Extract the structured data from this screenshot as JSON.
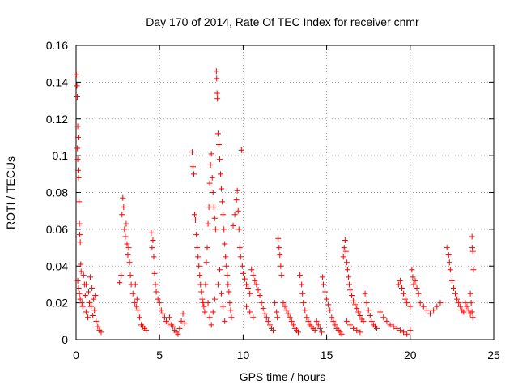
{
  "chart_data": {
    "type": "scatter",
    "title": "Day 170 of 2014, Rate Of TEC Index for receiver cnmr",
    "xlabel": "GPS time / hours",
    "ylabel": "ROTI / TECUs",
    "xlim": [
      0,
      25
    ],
    "ylim": [
      0,
      0.16
    ],
    "xticks": [
      0,
      5,
      10,
      15,
      20,
      25
    ],
    "xtick_labels": [
      "0",
      "5",
      "10",
      "15",
      "20",
      "25"
    ],
    "yticks": [
      0,
      0.02,
      0.04,
      0.06,
      0.08,
      0.1,
      0.12,
      0.14,
      0.16
    ],
    "ytick_labels": [
      "0",
      "0.02",
      "0.04",
      "0.06",
      "0.08",
      "0.1",
      "0.12",
      "0.14",
      "0.16"
    ],
    "grid": true,
    "marker": "+",
    "series": [
      {
        "name": "ROTI",
        "color": "#ff0000",
        "points": [
          [
            0.02,
            0.144
          ],
          [
            0.05,
            0.138
          ],
          [
            0.07,
            0.132
          ],
          [
            0.1,
            0.116
          ],
          [
            0.12,
            0.11
          ],
          [
            0.08,
            0.104
          ],
          [
            0.1,
            0.098
          ],
          [
            0.12,
            0.092
          ],
          [
            0.15,
            0.088
          ],
          [
            0.18,
            0.075
          ],
          [
            0.2,
            0.063
          ],
          [
            0.22,
            0.057
          ],
          [
            0.25,
            0.053
          ],
          [
            0.28,
            0.041
          ],
          [
            0.3,
            0.037
          ],
          [
            0.1,
            0.032
          ],
          [
            0.15,
            0.028
          ],
          [
            0.2,
            0.025
          ],
          [
            0.25,
            0.022
          ],
          [
            0.35,
            0.02
          ],
          [
            0.4,
            0.018
          ],
          [
            0.5,
            0.03
          ],
          [
            0.55,
            0.024
          ],
          [
            0.6,
            0.015
          ],
          [
            0.7,
            0.012
          ],
          [
            0.75,
            0.026
          ],
          [
            0.8,
            0.02
          ],
          [
            0.9,
            0.018
          ],
          [
            1.0,
            0.013
          ],
          [
            1.05,
            0.022
          ],
          [
            1.1,
            0.016
          ],
          [
            1.2,
            0.01
          ],
          [
            1.3,
            0.007
          ],
          [
            1.4,
            0.005
          ],
          [
            1.5,
            0.004
          ],
          [
            0.45,
            0.035
          ],
          [
            0.6,
            0.03
          ],
          [
            0.85,
            0.034
          ],
          [
            0.95,
            0.028
          ],
          [
            1.15,
            0.024
          ],
          [
            2.6,
            0.031
          ],
          [
            2.7,
            0.035
          ],
          [
            2.75,
            0.068
          ],
          [
            2.8,
            0.077
          ],
          [
            2.85,
            0.072
          ],
          [
            2.9,
            0.06
          ],
          [
            2.95,
            0.056
          ],
          [
            3.0,
            0.063
          ],
          [
            3.05,
            0.052
          ],
          [
            3.1,
            0.046
          ],
          [
            3.15,
            0.05
          ],
          [
            3.2,
            0.042
          ],
          [
            3.25,
            0.035
          ],
          [
            3.3,
            0.03
          ],
          [
            3.4,
            0.025
          ],
          [
            3.5,
            0.02
          ],
          [
            3.6,
            0.018
          ],
          [
            3.7,
            0.016
          ],
          [
            3.8,
            0.012
          ],
          [
            3.9,
            0.008
          ],
          [
            4.0,
            0.007
          ],
          [
            4.1,
            0.006
          ],
          [
            4.2,
            0.005
          ],
          [
            3.55,
            0.03
          ],
          [
            3.65,
            0.022
          ],
          [
            4.5,
            0.058
          ],
          [
            4.55,
            0.05
          ],
          [
            4.6,
            0.054
          ],
          [
            4.65,
            0.045
          ],
          [
            4.7,
            0.036
          ],
          [
            4.75,
            0.03
          ],
          [
            4.8,
            0.026
          ],
          [
            4.9,
            0.022
          ],
          [
            5.0,
            0.02
          ],
          [
            5.1,
            0.016
          ],
          [
            5.2,
            0.014
          ],
          [
            5.3,
            0.012
          ],
          [
            5.4,
            0.01
          ],
          [
            5.5,
            0.009
          ],
          [
            5.6,
            0.012
          ],
          [
            5.7,
            0.008
          ],
          [
            5.8,
            0.007
          ],
          [
            5.9,
            0.005
          ],
          [
            6.0,
            0.004
          ],
          [
            6.1,
            0.003
          ],
          [
            6.2,
            0.006
          ],
          [
            6.3,
            0.01
          ],
          [
            6.4,
            0.014
          ],
          [
            6.5,
            0.009
          ],
          [
            6.95,
            0.102
          ],
          [
            7.0,
            0.094
          ],
          [
            7.05,
            0.09
          ],
          [
            7.1,
            0.068
          ],
          [
            7.15,
            0.065
          ],
          [
            7.2,
            0.057
          ],
          [
            7.25,
            0.05
          ],
          [
            7.3,
            0.045
          ],
          [
            7.35,
            0.04
          ],
          [
            7.4,
            0.035
          ],
          [
            7.45,
            0.03
          ],
          [
            7.5,
            0.026
          ],
          [
            7.55,
            0.022
          ],
          [
            7.6,
            0.02
          ],
          [
            7.65,
            0.018
          ],
          [
            7.7,
            0.015
          ],
          [
            7.75,
            0.03
          ],
          [
            7.8,
            0.042
          ],
          [
            7.85,
            0.05
          ],
          [
            7.9,
            0.063
          ],
          [
            7.95,
            0.072
          ],
          [
            8.0,
            0.085
          ],
          [
            8.05,
            0.095
          ],
          [
            8.1,
            0.101
          ],
          [
            8.15,
            0.088
          ],
          [
            8.2,
            0.08
          ],
          [
            8.25,
            0.072
          ],
          [
            8.3,
            0.066
          ],
          [
            8.35,
            0.06
          ],
          [
            8.4,
            0.146
          ],
          [
            8.42,
            0.142
          ],
          [
            8.44,
            0.134
          ],
          [
            8.46,
            0.131
          ],
          [
            8.5,
            0.112
          ],
          [
            8.55,
            0.106
          ],
          [
            8.6,
            0.098
          ],
          [
            8.65,
            0.09
          ],
          [
            8.7,
            0.082
          ],
          [
            8.75,
            0.075
          ],
          [
            8.8,
            0.068
          ],
          [
            8.85,
            0.06
          ],
          [
            8.9,
            0.052
          ],
          [
            8.95,
            0.045
          ],
          [
            9.0,
            0.04
          ],
          [
            9.05,
            0.035
          ],
          [
            9.1,
            0.03
          ],
          [
            9.15,
            0.026
          ],
          [
            9.2,
            0.02
          ],
          [
            9.25,
            0.016
          ],
          [
            9.3,
            0.012
          ],
          [
            7.9,
            0.02
          ],
          [
            8.0,
            0.012
          ],
          [
            8.1,
            0.008
          ],
          [
            8.2,
            0.015
          ],
          [
            8.3,
            0.022
          ],
          [
            8.5,
            0.03
          ],
          [
            8.6,
            0.038
          ],
          [
            8.7,
            0.025
          ],
          [
            8.8,
            0.018
          ],
          [
            8.9,
            0.01
          ],
          [
            9.4,
            0.062
          ],
          [
            9.5,
            0.068
          ],
          [
            9.6,
            0.076
          ],
          [
            9.65,
            0.081
          ],
          [
            9.7,
            0.07
          ],
          [
            9.75,
            0.06
          ],
          [
            9.8,
            0.05
          ],
          [
            9.85,
            0.045
          ],
          [
            9.9,
            0.103
          ],
          [
            9.95,
            0.04
          ],
          [
            10.0,
            0.036
          ],
          [
            10.1,
            0.033
          ],
          [
            10.2,
            0.03
          ],
          [
            10.3,
            0.028
          ],
          [
            10.4,
            0.025
          ],
          [
            10.5,
            0.038
          ],
          [
            10.6,
            0.035
          ],
          [
            10.7,
            0.032
          ],
          [
            10.8,
            0.03
          ],
          [
            10.9,
            0.027
          ],
          [
            11.0,
            0.024
          ],
          [
            11.1,
            0.02
          ],
          [
            11.2,
            0.017
          ],
          [
            11.3,
            0.014
          ],
          [
            11.4,
            0.012
          ],
          [
            11.5,
            0.01
          ],
          [
            11.6,
            0.008
          ],
          [
            11.7,
            0.006
          ],
          [
            11.8,
            0.005
          ],
          [
            11.9,
            0.02
          ],
          [
            12.0,
            0.015
          ],
          [
            12.05,
            0.012
          ],
          [
            10.2,
            0.018
          ],
          [
            10.4,
            0.015
          ],
          [
            10.6,
            0.012
          ],
          [
            12.1,
            0.055
          ],
          [
            12.15,
            0.05
          ],
          [
            12.2,
            0.046
          ],
          [
            12.25,
            0.04
          ],
          [
            12.3,
            0.035
          ],
          [
            12.4,
            0.02
          ],
          [
            12.5,
            0.018
          ],
          [
            12.6,
            0.016
          ],
          [
            12.7,
            0.014
          ],
          [
            12.8,
            0.012
          ],
          [
            12.9,
            0.01
          ],
          [
            13.0,
            0.008
          ],
          [
            13.1,
            0.006
          ],
          [
            13.2,
            0.005
          ],
          [
            13.3,
            0.004
          ],
          [
            13.4,
            0.035
          ],
          [
            13.5,
            0.03
          ],
          [
            13.55,
            0.025
          ],
          [
            13.6,
            0.02
          ],
          [
            13.7,
            0.016
          ],
          [
            13.8,
            0.012
          ],
          [
            13.9,
            0.01
          ],
          [
            14.0,
            0.008
          ],
          [
            14.1,
            0.007
          ],
          [
            14.2,
            0.006
          ],
          [
            14.3,
            0.005
          ],
          [
            14.4,
            0.01
          ],
          [
            14.5,
            0.008
          ],
          [
            14.6,
            0.006
          ],
          [
            14.7,
            0.004
          ],
          [
            14.75,
            0.034
          ],
          [
            14.8,
            0.03
          ],
          [
            14.9,
            0.026
          ],
          [
            15.0,
            0.022
          ],
          [
            15.1,
            0.019
          ],
          [
            15.2,
            0.016
          ],
          [
            15.3,
            0.012
          ],
          [
            15.4,
            0.01
          ],
          [
            15.5,
            0.008
          ],
          [
            15.6,
            0.006
          ],
          [
            15.7,
            0.005
          ],
          [
            15.8,
            0.004
          ],
          [
            15.9,
            0.003
          ],
          [
            16.0,
            0.045
          ],
          [
            16.05,
            0.05
          ],
          [
            16.1,
            0.054
          ],
          [
            16.15,
            0.048
          ],
          [
            16.2,
            0.042
          ],
          [
            16.25,
            0.038
          ],
          [
            16.3,
            0.034
          ],
          [
            16.35,
            0.03
          ],
          [
            16.4,
            0.027
          ],
          [
            16.5,
            0.024
          ],
          [
            16.6,
            0.021
          ],
          [
            16.7,
            0.019
          ],
          [
            16.8,
            0.017
          ],
          [
            16.9,
            0.015
          ],
          [
            17.0,
            0.013
          ],
          [
            17.1,
            0.011
          ],
          [
            17.2,
            0.01
          ],
          [
            17.3,
            0.025
          ],
          [
            17.4,
            0.02
          ],
          [
            17.5,
            0.016
          ],
          [
            17.6,
            0.013
          ],
          [
            17.7,
            0.01
          ],
          [
            17.8,
            0.008
          ],
          [
            17.9,
            0.007
          ],
          [
            18.0,
            0.006
          ],
          [
            16.2,
            0.01
          ],
          [
            16.4,
            0.008
          ],
          [
            16.6,
            0.006
          ],
          [
            16.8,
            0.005
          ],
          [
            17.0,
            0.004
          ],
          [
            18.2,
            0.015
          ],
          [
            18.4,
            0.012
          ],
          [
            18.6,
            0.01
          ],
          [
            18.8,
            0.008
          ],
          [
            19.0,
            0.007
          ],
          [
            19.2,
            0.006
          ],
          [
            19.4,
            0.005
          ],
          [
            19.6,
            0.004
          ],
          [
            19.8,
            0.003
          ],
          [
            20.0,
            0.005
          ],
          [
            19.3,
            0.03
          ],
          [
            19.4,
            0.032
          ],
          [
            19.5,
            0.028
          ],
          [
            19.6,
            0.025
          ],
          [
            19.7,
            0.022
          ],
          [
            19.8,
            0.02
          ],
          [
            20.0,
            0.018
          ],
          [
            20.2,
            0.03
          ],
          [
            20.3,
            0.032
          ],
          [
            20.4,
            0.028
          ],
          [
            20.5,
            0.025
          ],
          [
            20.6,
            0.02
          ],
          [
            20.8,
            0.018
          ],
          [
            21.0,
            0.016
          ],
          [
            21.2,
            0.014
          ],
          [
            21.4,
            0.016
          ],
          [
            21.6,
            0.018
          ],
          [
            21.8,
            0.02
          ],
          [
            20.1,
            0.038
          ],
          [
            20.15,
            0.034
          ],
          [
            22.2,
            0.05
          ],
          [
            22.3,
            0.046
          ],
          [
            22.35,
            0.042
          ],
          [
            22.4,
            0.038
          ],
          [
            22.5,
            0.032
          ],
          [
            22.6,
            0.028
          ],
          [
            22.7,
            0.025
          ],
          [
            22.8,
            0.022
          ],
          [
            22.9,
            0.02
          ],
          [
            23.0,
            0.018
          ],
          [
            23.1,
            0.016
          ],
          [
            23.2,
            0.015
          ],
          [
            23.3,
            0.02
          ],
          [
            23.4,
            0.018
          ],
          [
            23.5,
            0.016
          ],
          [
            23.6,
            0.014
          ],
          [
            23.7,
            0.056
          ],
          [
            23.72,
            0.05
          ],
          [
            23.75,
            0.048
          ],
          [
            23.78,
            0.038
          ],
          [
            23.6,
            0.025
          ],
          [
            23.65,
            0.02
          ],
          [
            23.7,
            0.015
          ],
          [
            23.75,
            0.012
          ]
        ]
      }
    ]
  }
}
